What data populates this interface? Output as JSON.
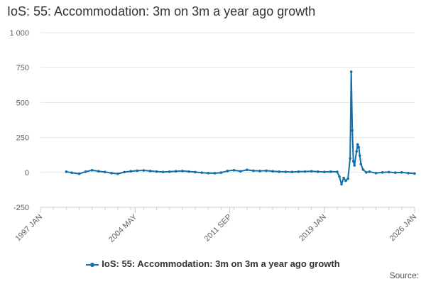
{
  "chart_data": {
    "type": "line",
    "title": "IoS: 55: Accommodation: 3m on 3m a year ago growth",
    "source_label": "Source:",
    "colors": {
      "series": "#0f6fa8",
      "grid": "#e6e6e6",
      "axis": "#cccccc"
    },
    "y_axis": {
      "range": [
        -250,
        1000
      ],
      "ticks": [
        {
          "value": -250,
          "label": "-250"
        },
        {
          "value": 0,
          "label": "0"
        },
        {
          "value": 250,
          "label": "250"
        },
        {
          "value": 500,
          "label": "500"
        },
        {
          "value": 750,
          "label": "750"
        },
        {
          "value": 1000,
          "label": "1 000"
        }
      ]
    },
    "x_axis": {
      "range": [
        "1997-01",
        "2026-01"
      ],
      "ticks": [
        {
          "value": "1997-01",
          "label": "1997 JAN"
        },
        {
          "value": "2004-05",
          "label": "2004 MAY"
        },
        {
          "value": "2011-09",
          "label": "2011 SEP"
        },
        {
          "value": "2019-01",
          "label": "2019 JAN"
        },
        {
          "value": "2026-01",
          "label": "2026 JAN"
        }
      ]
    },
    "grid": true,
    "legend_position": "bottom",
    "series": [
      {
        "name": "IoS: 55: Accommodation: 3m on 3m a year ago growth",
        "points": [
          [
            "1999-01",
            5
          ],
          [
            "1999-06",
            -2
          ],
          [
            "2000-01",
            -10
          ],
          [
            "2000-07",
            5
          ],
          [
            "2001-01",
            15
          ],
          [
            "2001-07",
            8
          ],
          [
            "2002-01",
            3
          ],
          [
            "2002-07",
            -5
          ],
          [
            "2003-01",
            -10
          ],
          [
            "2003-07",
            2
          ],
          [
            "2004-01",
            8
          ],
          [
            "2004-07",
            12
          ],
          [
            "2005-01",
            14
          ],
          [
            "2005-07",
            10
          ],
          [
            "2006-01",
            6
          ],
          [
            "2006-07",
            3
          ],
          [
            "2007-01",
            5
          ],
          [
            "2007-07",
            8
          ],
          [
            "2008-01",
            10
          ],
          [
            "2008-07",
            6
          ],
          [
            "2009-01",
            2
          ],
          [
            "2009-07",
            -2
          ],
          [
            "2010-01",
            -5
          ],
          [
            "2010-07",
            -6
          ],
          [
            "2011-01",
            -2
          ],
          [
            "2011-07",
            10
          ],
          [
            "2012-01",
            15
          ],
          [
            "2012-07",
            8
          ],
          [
            "2013-01",
            18
          ],
          [
            "2013-07",
            12
          ],
          [
            "2014-01",
            10
          ],
          [
            "2014-07",
            12
          ],
          [
            "2015-01",
            8
          ],
          [
            "2015-07",
            5
          ],
          [
            "2016-01",
            4
          ],
          [
            "2016-07",
            3
          ],
          [
            "2017-01",
            5
          ],
          [
            "2017-07",
            6
          ],
          [
            "2018-01",
            8
          ],
          [
            "2018-07",
            5
          ],
          [
            "2019-01",
            3
          ],
          [
            "2019-07",
            5
          ],
          [
            "2020-01",
            4
          ],
          [
            "2020-03",
            -30
          ],
          [
            "2020-05",
            -85
          ],
          [
            "2020-07",
            -40
          ],
          [
            "2020-09",
            -60
          ],
          [
            "2020-11",
            -45
          ],
          [
            "2021-01",
            100
          ],
          [
            "2021-02",
            720
          ],
          [
            "2021-03",
            300
          ],
          [
            "2021-04",
            80
          ],
          [
            "2021-05",
            50
          ],
          [
            "2021-07",
            150
          ],
          [
            "2021-08",
            200
          ],
          [
            "2021-09",
            180
          ],
          [
            "2021-10",
            120
          ],
          [
            "2021-11",
            60
          ],
          [
            "2022-01",
            20
          ],
          [
            "2022-04",
            0
          ],
          [
            "2022-07",
            5
          ],
          [
            "2023-01",
            -5
          ],
          [
            "2023-07",
            0
          ],
          [
            "2024-01",
            2
          ],
          [
            "2024-07",
            -2
          ],
          [
            "2025-01",
            0
          ],
          [
            "2025-07",
            -5
          ],
          [
            "2026-01",
            -8
          ]
        ]
      }
    ]
  }
}
